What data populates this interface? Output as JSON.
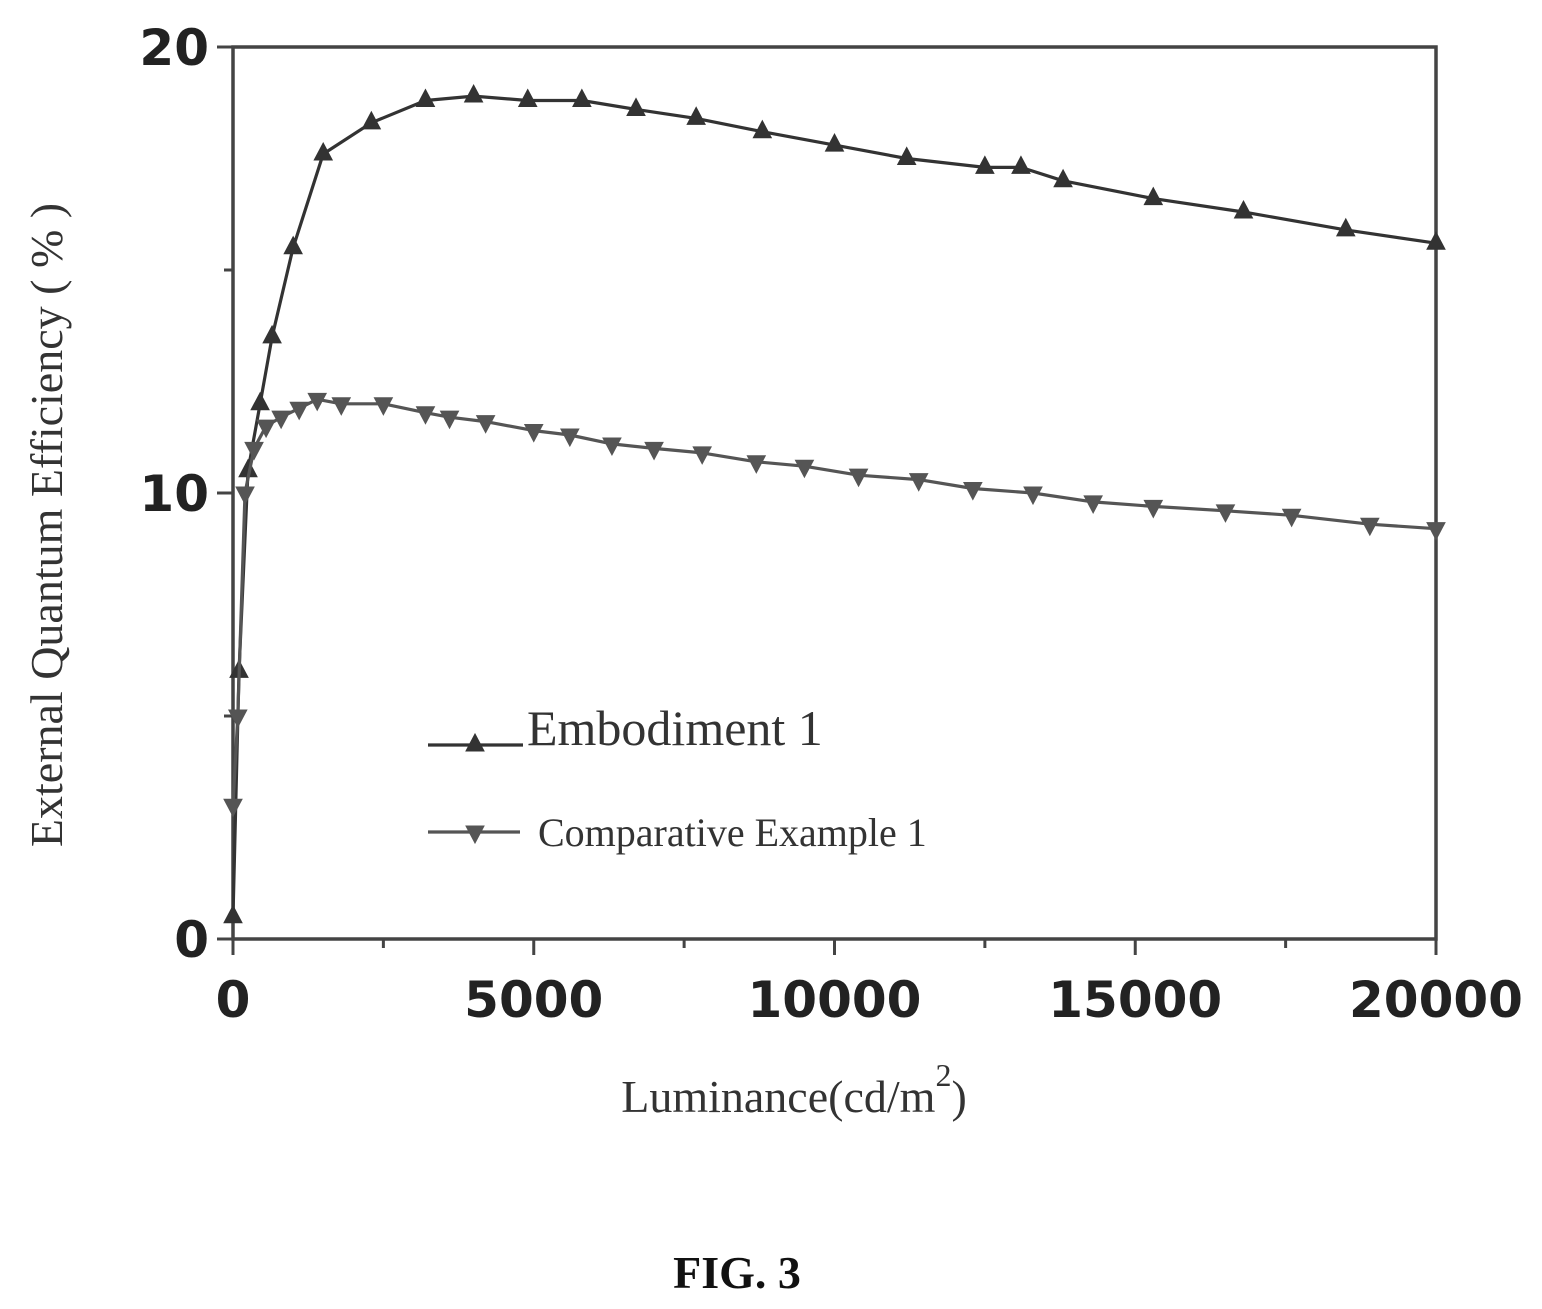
{
  "figure": {
    "caption": "FIG. 3"
  },
  "chart_data": {
    "type": "line",
    "title": "",
    "xlabel": "Luminance(cd/m",
    "xlabel_superscript": "2",
    "xlabel_close": ")",
    "ylabel": "External Quantum Efficiency ( % )",
    "xlim": [
      0,
      20000
    ],
    "ylim": [
      0,
      20
    ],
    "xticks": [
      0,
      5000,
      10000,
      15000,
      20000
    ],
    "yticks": [
      0,
      10,
      20
    ],
    "xtick_labels": [
      "0",
      "5000",
      "10000",
      "15000",
      "20000"
    ],
    "ytick_labels": [
      "0",
      "10",
      "20"
    ],
    "grid": false,
    "legend_position": "center-left",
    "series": [
      {
        "name": "Embodiment 1",
        "marker": "triangle-up",
        "color": "#333333",
        "x": [
          0,
          100,
          250,
          450,
          650,
          1000,
          1500,
          2300,
          3200,
          4000,
          4900,
          5800,
          6700,
          7700,
          8800,
          10000,
          11200,
          12500,
          13100,
          13800,
          15300,
          16800,
          18500,
          20000
        ],
        "y": [
          0.5,
          6,
          10.5,
          12,
          13.5,
          15.5,
          17.6,
          18.3,
          18.8,
          18.9,
          18.8,
          18.8,
          18.6,
          18.4,
          18.1,
          17.8,
          17.5,
          17.3,
          17.3,
          17.0,
          16.6,
          16.3,
          15.9,
          15.6
        ]
      },
      {
        "name": "Comparative Example 1",
        "marker": "triangle-down",
        "color": "#555555",
        "x": [
          0,
          80,
          200,
          350,
          550,
          800,
          1100,
          1400,
          1800,
          2500,
          3200,
          3600,
          4200,
          5000,
          5600,
          6300,
          7000,
          7800,
          8700,
          9500,
          10400,
          11400,
          12300,
          13300,
          14300,
          15300,
          16500,
          17600,
          18900,
          20000
        ],
        "y": [
          3,
          5,
          10,
          11,
          11.5,
          11.7,
          11.9,
          12.1,
          12.0,
          12.0,
          11.8,
          11.7,
          11.6,
          11.4,
          11.3,
          11.1,
          11.0,
          10.9,
          10.7,
          10.6,
          10.4,
          10.3,
          10.1,
          10.0,
          9.8,
          9.7,
          9.6,
          9.5,
          9.3,
          9.2
        ]
      }
    ]
  }
}
